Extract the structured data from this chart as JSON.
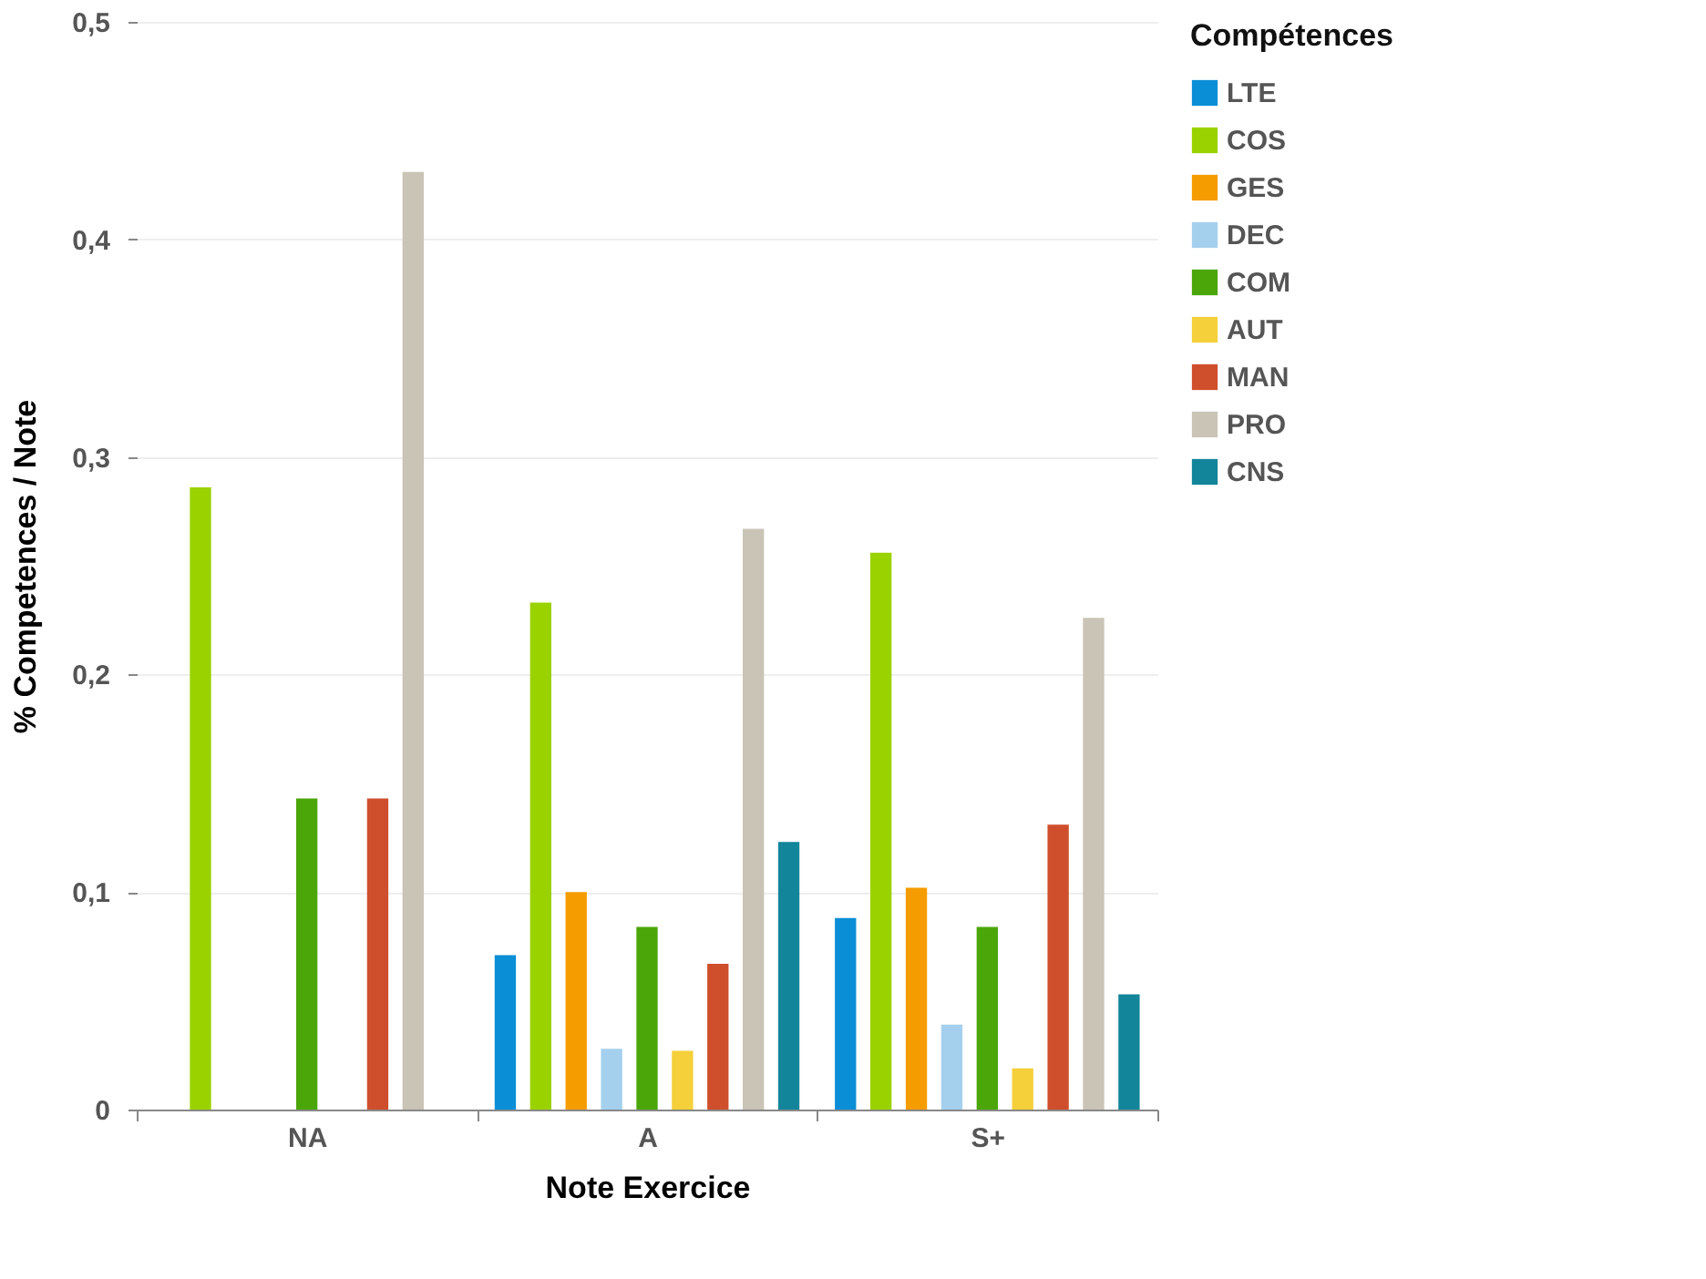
{
  "chart_data": {
    "type": "bar",
    "xlabel": "Note Exercice",
    "ylabel": "% Competences / Note",
    "legend_title": "Compétences",
    "categories": [
      "NA",
      "A",
      "S+"
    ],
    "series": [
      {
        "name": "LTE",
        "color": "#0a8ed6",
        "values": [
          null,
          0.071,
          0.088
        ]
      },
      {
        "name": "COS",
        "color": "#9ad200",
        "values": [
          0.286,
          0.233,
          0.256
        ]
      },
      {
        "name": "GES",
        "color": "#f59c00",
        "values": [
          null,
          0.1,
          0.102
        ]
      },
      {
        "name": "DEC",
        "color": "#a4d0ee",
        "values": [
          null,
          0.028,
          0.039
        ]
      },
      {
        "name": "COM",
        "color": "#4ba60a",
        "values": [
          0.143,
          0.084,
          0.084
        ]
      },
      {
        "name": "AUT",
        "color": "#f5d03a",
        "values": [
          null,
          0.027,
          0.019
        ]
      },
      {
        "name": "MAN",
        "color": "#cf4f2c",
        "values": [
          0.143,
          0.067,
          0.131
        ]
      },
      {
        "name": "PRO",
        "color": "#c9c4b6",
        "values": [
          0.431,
          0.267,
          0.226
        ]
      },
      {
        "name": "CNS",
        "color": "#12859a",
        "values": [
          null,
          0.123,
          0.053
        ]
      }
    ],
    "ylim": [
      0,
      0.5
    ],
    "yticks": [
      0,
      {
        "value": 0.1,
        "label": "0,1"
      },
      {
        "value": 0.2,
        "label": "0,2"
      },
      {
        "value": 0.3,
        "label": "0,3"
      },
      {
        "value": 0.4,
        "label": "0,4"
      },
      {
        "value": 0.5,
        "label": "0,5"
      }
    ],
    "grid": "y",
    "legend": "right"
  }
}
